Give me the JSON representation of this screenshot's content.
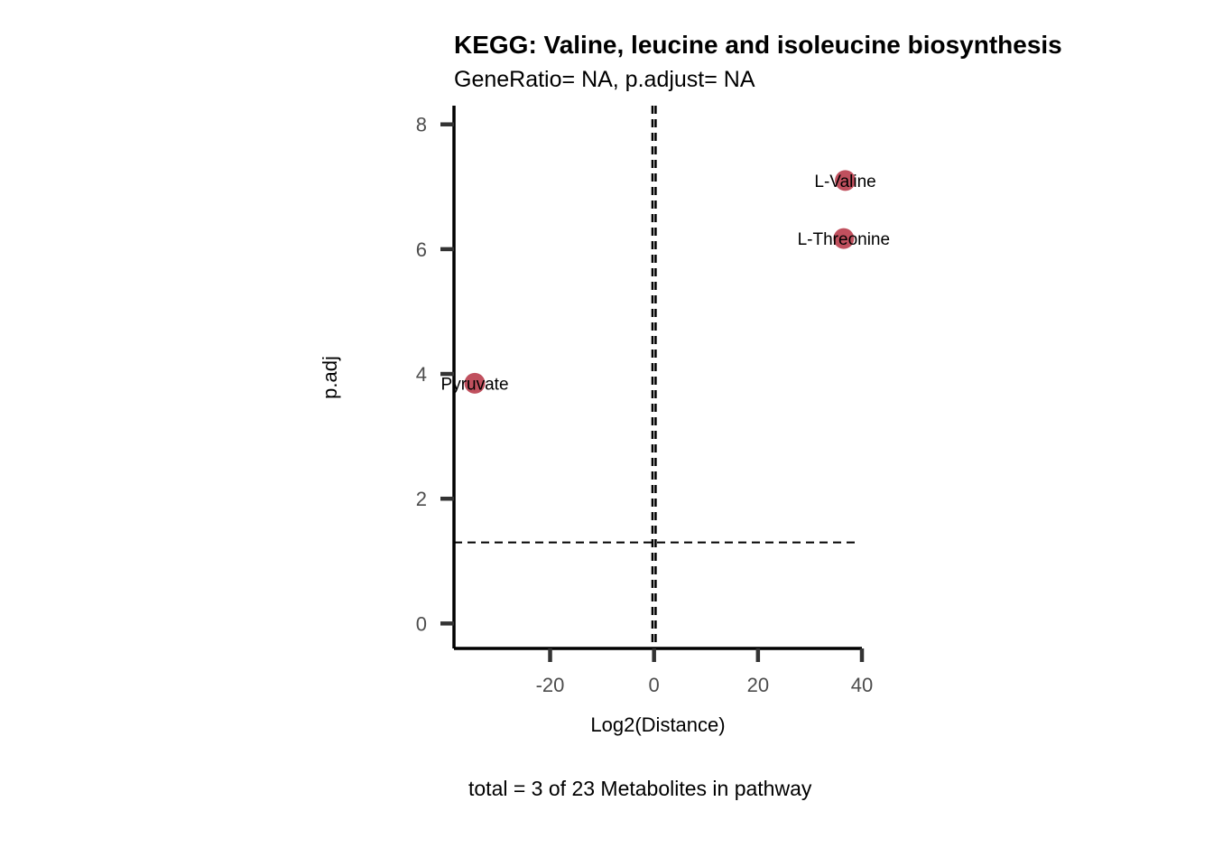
{
  "chart_data": {
    "type": "scatter",
    "title": "KEGG: Valine, leucine and isoleucine biosynthesis",
    "subtitle": "GeneRatio= NA, p.adjust= NA",
    "caption": "total = 3 of 23 Metabolites in pathway",
    "xlabel": "Log2(Distance)",
    "ylabel": "p.adj",
    "xlim": [
      -38.5,
      40
    ],
    "ylim": [
      -0.4,
      8.3
    ],
    "x_ticks": [
      -20,
      0,
      20,
      40
    ],
    "x_tick_labels": [
      "-20",
      "0",
      "20",
      "40"
    ],
    "y_ticks": [
      0,
      2,
      4,
      6,
      8
    ],
    "y_tick_labels": [
      "0",
      "2",
      "4",
      "6",
      "8"
    ],
    "point_color": "#c0505e",
    "points": [
      {
        "label": "L-Valine",
        "x": 36.8,
        "y": 7.1
      },
      {
        "label": "L-Threonine",
        "x": 36.5,
        "y": 6.17
      },
      {
        "label": "Pyruvate",
        "x": -34.5,
        "y": 3.85
      }
    ],
    "reference_lines": {
      "vertical_x": [
        -0.3,
        0.3
      ],
      "horizontal_y": 1.3
    }
  }
}
